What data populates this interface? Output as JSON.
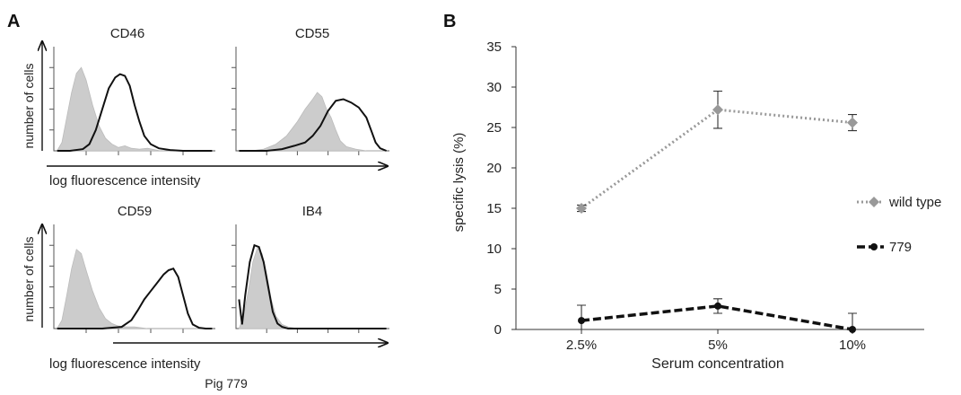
{
  "panels": {
    "a_label": "A",
    "b_label": "B"
  },
  "colors": {
    "filled_histogram": "#cccccc",
    "open_histogram": "#111111",
    "wild_type": "#999999",
    "strain_779": "#111111",
    "error_bars": "#333333"
  },
  "chart_data": [
    {
      "type": "area",
      "panel": "A",
      "figure_caption": "Pig 779",
      "ylabel": "number of cells",
      "xlabel": "log fluorescence intensity",
      "x_scale": "log",
      "axis_ticks": "unlabeled",
      "subplots": [
        {
          "title": "CD46",
          "filled_histogram": {
            "x": [
              0.02,
              0.05,
              0.08,
              0.11,
              0.14,
              0.17,
              0.2,
              0.24,
              0.28,
              0.32,
              0.36,
              0.4,
              0.44,
              0.48,
              0.53,
              0.58,
              0.66,
              0.75,
              0.85,
              0.98
            ],
            "y": [
              0.0,
              0.1,
              0.4,
              0.7,
              0.93,
              1.0,
              0.85,
              0.55,
              0.3,
              0.15,
              0.08,
              0.04,
              0.06,
              0.03,
              0.02,
              0.03,
              0.0,
              0.0,
              0.0,
              0.0
            ]
          },
          "open_histogram": {
            "x": [
              0.02,
              0.1,
              0.18,
              0.22,
              0.26,
              0.3,
              0.34,
              0.38,
              0.41,
              0.44,
              0.47,
              0.5,
              0.53,
              0.56,
              0.6,
              0.65,
              0.72,
              0.8,
              0.9,
              0.98
            ],
            "y": [
              0.0,
              0.0,
              0.02,
              0.08,
              0.25,
              0.5,
              0.75,
              0.88,
              0.92,
              0.9,
              0.78,
              0.55,
              0.35,
              0.18,
              0.08,
              0.03,
              0.01,
              0.0,
              0.0,
              0.0
            ]
          }
        },
        {
          "title": "CD55",
          "filled_histogram": {
            "x": [
              0.02,
              0.1,
              0.18,
              0.26,
              0.33,
              0.4,
              0.45,
              0.5,
              0.53,
              0.56,
              0.59,
              0.62,
              0.65,
              0.68,
              0.72,
              0.78,
              0.85,
              0.98
            ],
            "y": [
              0.0,
              0.0,
              0.02,
              0.08,
              0.18,
              0.35,
              0.5,
              0.62,
              0.7,
              0.65,
              0.5,
              0.4,
              0.25,
              0.12,
              0.05,
              0.02,
              0.0,
              0.0
            ]
          },
          "open_histogram": {
            "x": [
              0.02,
              0.2,
              0.3,
              0.38,
              0.45,
              0.5,
              0.55,
              0.6,
              0.65,
              0.7,
              0.75,
              0.8,
              0.85,
              0.88,
              0.91,
              0.94,
              0.98
            ],
            "y": [
              0.0,
              0.0,
              0.02,
              0.06,
              0.1,
              0.18,
              0.3,
              0.48,
              0.6,
              0.62,
              0.58,
              0.52,
              0.4,
              0.25,
              0.1,
              0.03,
              0.0
            ]
          }
        },
        {
          "title": "CD59",
          "filled_histogram": {
            "x": [
              0.02,
              0.05,
              0.08,
              0.11,
              0.14,
              0.17,
              0.2,
              0.24,
              0.28,
              0.32,
              0.36,
              0.4,
              0.45,
              0.5,
              0.58,
              0.68,
              0.8,
              0.98
            ],
            "y": [
              0.0,
              0.1,
              0.4,
              0.72,
              0.95,
              0.9,
              0.7,
              0.45,
              0.25,
              0.12,
              0.06,
              0.03,
              0.02,
              0.02,
              0.0,
              0.0,
              0.0,
              0.0
            ]
          },
          "open_histogram": {
            "x": [
              0.02,
              0.3,
              0.42,
              0.48,
              0.52,
              0.56,
              0.6,
              0.64,
              0.68,
              0.71,
              0.74,
              0.77,
              0.8,
              0.83,
              0.86,
              0.9,
              0.94,
              0.98
            ],
            "y": [
              0.0,
              0.0,
              0.02,
              0.1,
              0.22,
              0.35,
              0.45,
              0.55,
              0.65,
              0.7,
              0.72,
              0.62,
              0.4,
              0.18,
              0.05,
              0.01,
              0.0,
              0.0
            ]
          }
        },
        {
          "title": "IB4",
          "filled_histogram": {
            "x": [
              0.02,
              0.05,
              0.08,
              0.11,
              0.14,
              0.17,
              0.2,
              0.23,
              0.26,
              0.3,
              0.34,
              0.4,
              0.5,
              0.65,
              0.8,
              0.98
            ],
            "y": [
              0.0,
              0.15,
              0.45,
              0.8,
              0.97,
              0.9,
              0.65,
              0.35,
              0.15,
              0.05,
              0.02,
              0.0,
              0.0,
              0.0,
              0.0,
              0.0
            ]
          },
          "open_histogram": {
            "x": [
              0.02,
              0.04,
              0.06,
              0.09,
              0.12,
              0.15,
              0.18,
              0.21,
              0.24,
              0.27,
              0.3,
              0.34,
              0.4,
              0.5,
              0.65,
              0.98
            ],
            "y": [
              0.35,
              0.05,
              0.4,
              0.8,
              1.0,
              0.98,
              0.8,
              0.5,
              0.2,
              0.06,
              0.02,
              0.0,
              0.0,
              0.0,
              0.0,
              0.0
            ]
          }
        }
      ]
    },
    {
      "type": "line",
      "panel": "B",
      "title": "",
      "xlabel": "Serum concentration",
      "ylabel": "specific lysis (%)",
      "categories": [
        "2.5%",
        "5%",
        "10%"
      ],
      "ylim": [
        0,
        35
      ],
      "yticks": [
        0,
        5,
        10,
        15,
        20,
        25,
        30,
        35
      ],
      "grid": false,
      "legend_position": "right",
      "series": [
        {
          "name": "wild type",
          "values": [
            15.0,
            27.2,
            25.6
          ],
          "errors": [
            0.4,
            2.3,
            1.0
          ],
          "line_style": "dotted",
          "marker": "diamond",
          "color": "#999999"
        },
        {
          "name": "779",
          "values": [
            1.1,
            2.9,
            0.0
          ],
          "errors": [
            1.9,
            0.9,
            2.0
          ],
          "line_style": "dashed",
          "marker": "circle",
          "color": "#111111"
        }
      ]
    }
  ]
}
